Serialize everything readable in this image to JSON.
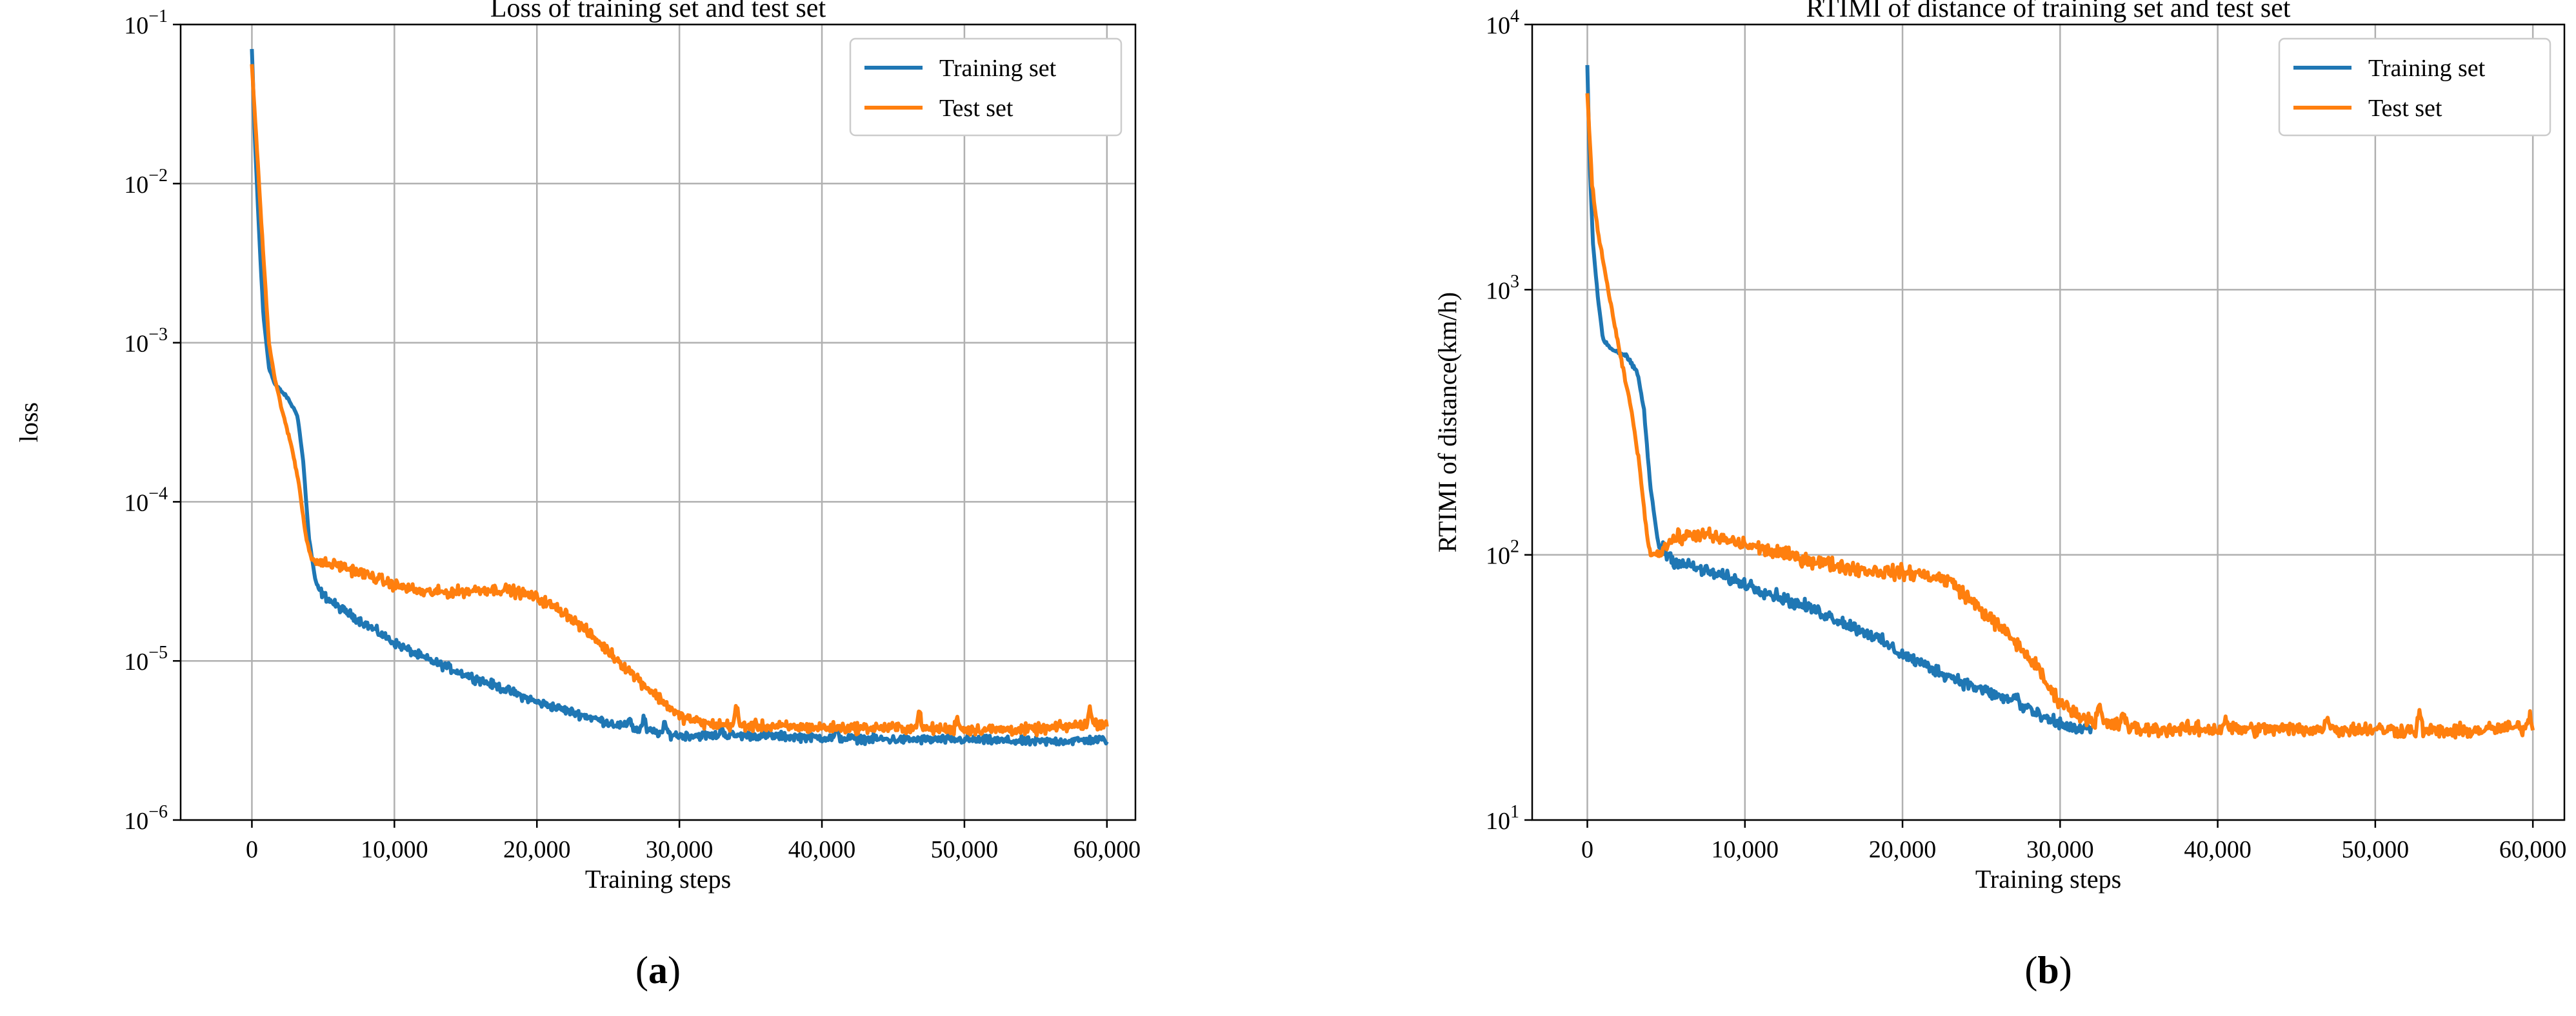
{
  "figure": {
    "panels": [
      "(a)",
      "(b)"
    ]
  },
  "colors": {
    "training": "#1f77b4",
    "test": "#ff7f0e",
    "grid": "#b0b0b0",
    "axis": "#000000"
  },
  "chart_data": [
    {
      "type": "line",
      "panel_label": "(a)",
      "title": "Loss of training set and test set",
      "xlabel": "Training steps",
      "ylabel": "loss",
      "xlim": [
        -5000,
        62000
      ],
      "ylim": [
        1e-06,
        0.1
      ],
      "yscale": "log",
      "grid": true,
      "legend": "top-right",
      "xticks": [
        0,
        10000,
        20000,
        30000,
        40000,
        50000,
        60000
      ],
      "xtick_labels": [
        "0",
        "10,000",
        "20,000",
        "30,000",
        "40,000",
        "50,000",
        "60,000"
      ],
      "yticks": [
        1e-06,
        1e-05,
        0.0001,
        0.001,
        0.01,
        0.1
      ],
      "ytick_labels": [
        {
          "base": "10",
          "exp": "−6"
        },
        {
          "base": "10",
          "exp": "−5"
        },
        {
          "base": "10",
          "exp": "−4"
        },
        {
          "base": "10",
          "exp": "−3"
        },
        {
          "base": "10",
          "exp": "−2"
        },
        {
          "base": "10",
          "exp": "−1"
        }
      ],
      "series": [
        {
          "name": "Training set",
          "noise": 0.04,
          "points": [
            [
              0,
              0.07
            ],
            [
              200,
              0.02
            ],
            [
              500,
              0.005
            ],
            [
              800,
              0.0015
            ],
            [
              1200,
              0.0007
            ],
            [
              1600,
              0.00055
            ],
            [
              2500,
              0.00045
            ],
            [
              3200,
              0.00035
            ],
            [
              3600,
              0.00018
            ],
            [
              4000,
              6e-05
            ],
            [
              4500,
              3e-05
            ],
            [
              5000,
              2.6e-05
            ],
            [
              6000,
              2.2e-05
            ],
            [
              8000,
              1.7e-05
            ],
            [
              10000,
              1.3e-05
            ],
            [
              12000,
              1.05e-05
            ],
            [
              15000,
              8.2e-06
            ],
            [
              18000,
              6.5e-06
            ],
            [
              20000,
              5.5e-06
            ],
            [
              22000,
              4.9e-06
            ],
            [
              25000,
              4.1e-06
            ],
            [
              27000,
              3.7e-06
            ],
            [
              30000,
              3.4e-06
            ],
            [
              35000,
              3.4e-06
            ],
            [
              40000,
              3.3e-06
            ],
            [
              45000,
              3.2e-06
            ],
            [
              50000,
              3.2e-06
            ],
            [
              55000,
              3.1e-06
            ],
            [
              60000,
              3.2e-06
            ]
          ],
          "spikes": [
            [
              26500,
              4.5e-06
            ],
            [
              27500,
              4.4e-06
            ],
            [
              29000,
              4e-06
            ],
            [
              33000,
              3.8e-06
            ],
            [
              41000,
              3.6e-06
            ]
          ]
        },
        {
          "name": "Test set",
          "noise": 0.05,
          "points": [
            [
              0,
              0.055
            ],
            [
              300,
              0.02
            ],
            [
              700,
              0.005
            ],
            [
              1200,
              0.001
            ],
            [
              1600,
              0.0006
            ],
            [
              2200,
              0.00035
            ],
            [
              2800,
              0.00022
            ],
            [
              3300,
              0.00013
            ],
            [
              3800,
              6e-05
            ],
            [
              4200,
              4.3e-05
            ],
            [
              5000,
              4.1e-05
            ],
            [
              6000,
              4e-05
            ],
            [
              8000,
              3.5e-05
            ],
            [
              10000,
              3e-05
            ],
            [
              12000,
              2.7e-05
            ],
            [
              14000,
              2.7e-05
            ],
            [
              16000,
              2.8e-05
            ],
            [
              18000,
              2.8e-05
            ],
            [
              20000,
              2.5e-05
            ],
            [
              22000,
              2e-05
            ],
            [
              24000,
              1.4e-05
            ],
            [
              26000,
              9.5e-06
            ],
            [
              28000,
              6.5e-06
            ],
            [
              30000,
              4.5e-06
            ],
            [
              32000,
              4e-06
            ],
            [
              35000,
              3.9e-06
            ],
            [
              40000,
              3.8e-06
            ],
            [
              45000,
              3.8e-06
            ],
            [
              50000,
              3.7e-06
            ],
            [
              55000,
              3.7e-06
            ],
            [
              60000,
              4.1e-06
            ]
          ],
          "spikes": [
            [
              34000,
              5.2e-06
            ],
            [
              46800,
              4.9e-06
            ],
            [
              49500,
              4.5e-06
            ],
            [
              58800,
              5e-06
            ]
          ]
        }
      ]
    },
    {
      "type": "line",
      "panel_label": "(b)",
      "title": "RTIMI of distance of training set and test set",
      "xlabel": "Training steps",
      "ylabel": "RTIMI of distance(km/h)",
      "xlim": [
        -3500,
        62000
      ],
      "ylim": [
        10,
        10000
      ],
      "yscale": "log",
      "grid": true,
      "legend": "top-right",
      "xticks": [
        0,
        10000,
        20000,
        30000,
        40000,
        50000,
        60000
      ],
      "xtick_labels": [
        "0",
        "10,000",
        "20,000",
        "30,000",
        "40,000",
        "50,000",
        "60,000"
      ],
      "yticks": [
        10,
        100,
        1000,
        10000
      ],
      "ytick_labels": [
        {
          "base": "10",
          "exp": "1"
        },
        {
          "base": "10",
          "exp": "2"
        },
        {
          "base": "10",
          "exp": "3"
        },
        {
          "base": "10",
          "exp": "4"
        }
      ],
      "series": [
        {
          "name": "Training set",
          "noise": 0.035,
          "points": [
            [
              0,
              7000
            ],
            [
              150,
              3000
            ],
            [
              350,
              1500
            ],
            [
              700,
              900
            ],
            [
              1000,
              650
            ],
            [
              1500,
              600
            ],
            [
              2500,
              560
            ],
            [
              3200,
              480
            ],
            [
              3600,
              350
            ],
            [
              4000,
              180
            ],
            [
              4500,
              110
            ],
            [
              5500,
              95
            ],
            [
              8000,
              85
            ],
            [
              10000,
              78
            ],
            [
              12000,
              70
            ],
            [
              15000,
              60
            ],
            [
              18000,
              50
            ],
            [
              20000,
              42
            ],
            [
              22000,
              37
            ],
            [
              25000,
              31
            ],
            [
              27000,
              28
            ],
            [
              29000,
              24
            ],
            [
              31000,
              22
            ],
            [
              32000,
              22
            ]
          ],
          "spikes": [
            [
              27200,
              30
            ],
            [
              28000,
              27
            ]
          ]
        },
        {
          "name": "Test set",
          "noise": 0.04,
          "points": [
            [
              0,
              5500
            ],
            [
              300,
              2500
            ],
            [
              700,
              1600
            ],
            [
              1200,
              1100
            ],
            [
              2000,
              600
            ],
            [
              2800,
              350
            ],
            [
              3300,
              220
            ],
            [
              3700,
              130
            ],
            [
              4000,
              100
            ],
            [
              4500,
              102
            ],
            [
              5500,
              115
            ],
            [
              7000,
              120
            ],
            [
              9000,
              113
            ],
            [
              12000,
              102
            ],
            [
              15000,
              93
            ],
            [
              18000,
              87
            ],
            [
              21000,
              85
            ],
            [
              23000,
              80
            ],
            [
              25000,
              62
            ],
            [
              27000,
              48
            ],
            [
              28500,
              38
            ],
            [
              29500,
              30
            ],
            [
              31000,
              25
            ],
            [
              33000,
              23
            ],
            [
              35000,
              22
            ],
            [
              40000,
              22
            ],
            [
              45000,
              22
            ],
            [
              50000,
              22
            ],
            [
              55000,
              21.5
            ],
            [
              60000,
              22.5
            ]
          ],
          "spikes": [
            [
              32500,
              27
            ],
            [
              34000,
              26
            ],
            [
              40500,
              24.5
            ],
            [
              47000,
              25
            ],
            [
              52800,
              25
            ],
            [
              59800,
              24.5
            ]
          ]
        }
      ]
    }
  ]
}
